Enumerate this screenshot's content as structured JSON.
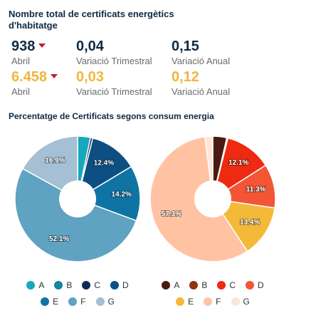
{
  "header": {
    "title": "Nombre total de certificats energètics d'habitatge"
  },
  "kpis": {
    "row1": {
      "total": "938",
      "total_label": "Abril",
      "quarterly": "0,04",
      "quarterly_label": "Variació Trimestral",
      "annual": "0,15",
      "annual_label": "Variació Anual"
    },
    "row2": {
      "total": "6.458",
      "total_label": "Abril",
      "quarterly": "0,03",
      "quarterly_label": "Variació Trimestral",
      "annual": "0,12",
      "annual_label": "Variació Anual"
    },
    "colors": {
      "row1": "#0f2a44",
      "row2": "#f0b63e",
      "down_arrow": "#c0202e"
    }
  },
  "section": {
    "subtitle": "Percentatge de Certificats segons consum energia"
  },
  "chart_data": [
    {
      "type": "pie",
      "donut": true,
      "title": "",
      "categories": [
        "A",
        "B",
        "C",
        "D",
        "E",
        "F",
        "G"
      ],
      "values": [
        3.3,
        0,
        0.6,
        12.4,
        14.2,
        52.1,
        16.9
      ],
      "value_labels": [
        "",
        "",
        "",
        "12.4%",
        "14.2%",
        "52.1%",
        "16.9%"
      ],
      "colors": [
        "#17a8bc",
        "#17859e",
        "#0c2a58",
        "#0d4f83",
        "#0f74a4",
        "#5fa2c2",
        "#a5bfd4"
      ],
      "legend_position": "bottom"
    },
    {
      "type": "pie",
      "donut": true,
      "title": "",
      "categories": [
        "A",
        "B",
        "C",
        "D",
        "E",
        "F",
        "G"
      ],
      "values": [
        3.6,
        0.3,
        12.1,
        11.3,
        13.4,
        57.3,
        2.0
      ],
      "value_labels": [
        "",
        "",
        "12.1%",
        "11.3%",
        "13.4%",
        "57.3%",
        ""
      ],
      "colors": [
        "#4a1a10",
        "#8f3510",
        "#ee2a10",
        "#f35535",
        "#f5b93a",
        "#ffc3a4",
        "#fde6d6"
      ],
      "legend_position": "bottom"
    }
  ]
}
